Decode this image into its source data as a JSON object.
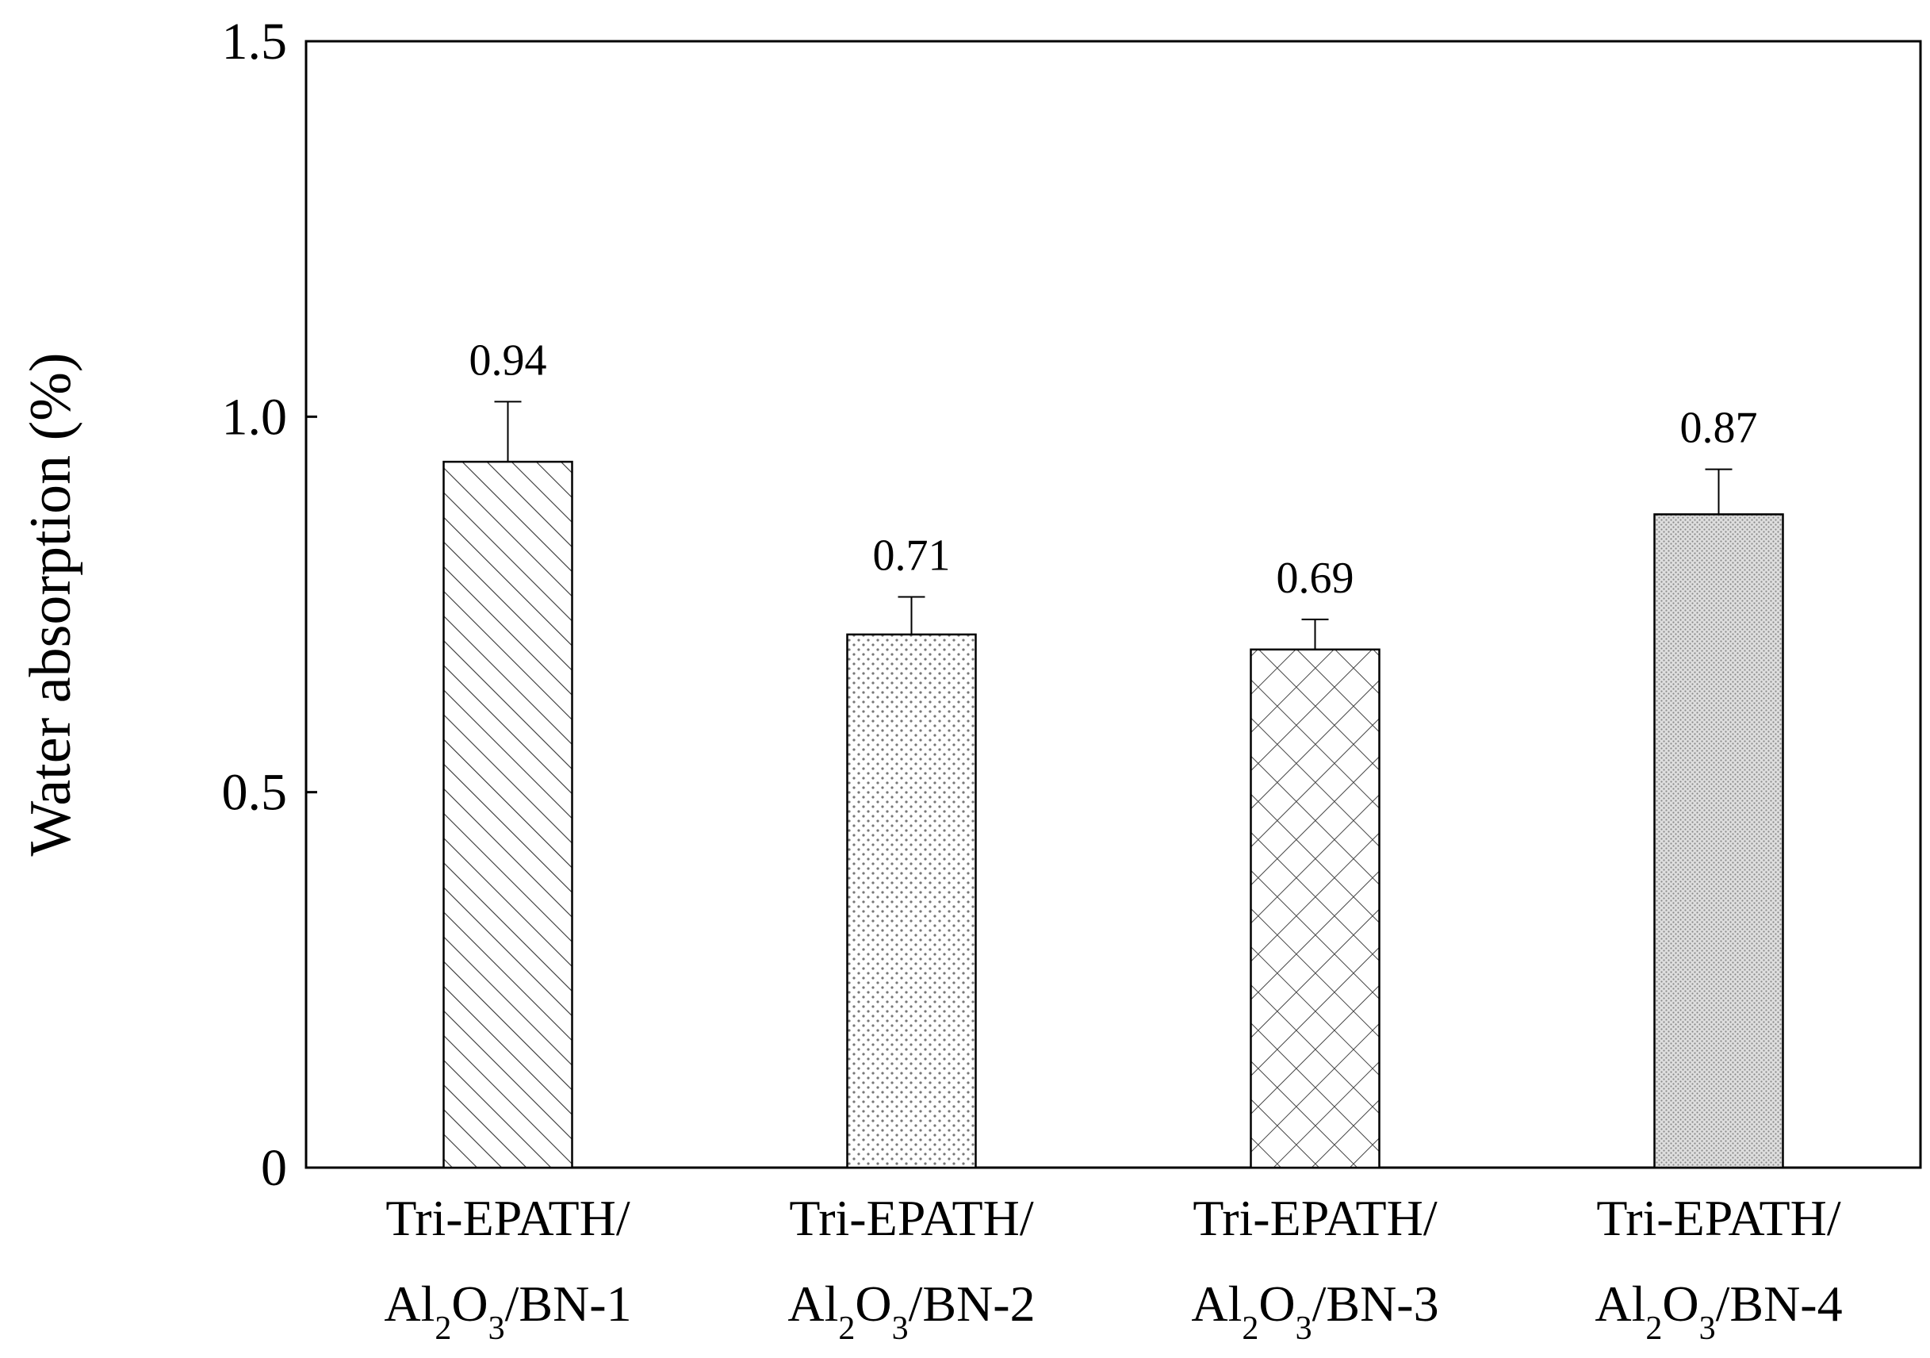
{
  "chart_data": {
    "type": "bar",
    "categories": [
      [
        "Tri-EPATH/",
        "Al2O3/BN-1"
      ],
      [
        "Tri-EPATH/",
        "Al2O3/BN-2"
      ],
      [
        "Tri-EPATH/",
        "Al2O3/BN-3"
      ],
      [
        "Tri-EPATH/",
        "Al2O3/BN-4"
      ]
    ],
    "category_labels": [
      {
        "line1": "Tri-EPATH/",
        "al": "Al",
        "sub1": "2",
        "o": "O",
        "sub2": "3",
        "rest": "/BN-1"
      },
      {
        "line1": "Tri-EPATH/",
        "al": "Al",
        "sub1": "2",
        "o": "O",
        "sub2": "3",
        "rest": "/BN-2"
      },
      {
        "line1": "Tri-EPATH/",
        "al": "Al",
        "sub1": "2",
        "o": "O",
        "sub2": "3",
        "rest": "/BN-3"
      },
      {
        "line1": "Tri-EPATH/",
        "al": "Al",
        "sub1": "2",
        "o": "O",
        "sub2": "3",
        "rest": "/BN-4"
      }
    ],
    "values": [
      0.94,
      0.71,
      0.69,
      0.87
    ],
    "value_labels": [
      "0.94",
      "0.71",
      "0.69",
      "0.87"
    ],
    "errors": [
      0.08,
      0.05,
      0.04,
      0.06
    ],
    "patterns": [
      "diagonal-hatch",
      "sparse-dots",
      "cross-hatch",
      "dense-dots"
    ],
    "ylabel": "Water absorption (%)",
    "xlabel": "",
    "title": "",
    "ylim": [
      0,
      1.5
    ],
    "yticks": [
      0,
      0.5,
      1.0,
      1.5
    ],
    "ytick_labels": [
      "0",
      "0.5",
      "1.0",
      "1.5"
    ],
    "grid": false,
    "legend": false
  }
}
